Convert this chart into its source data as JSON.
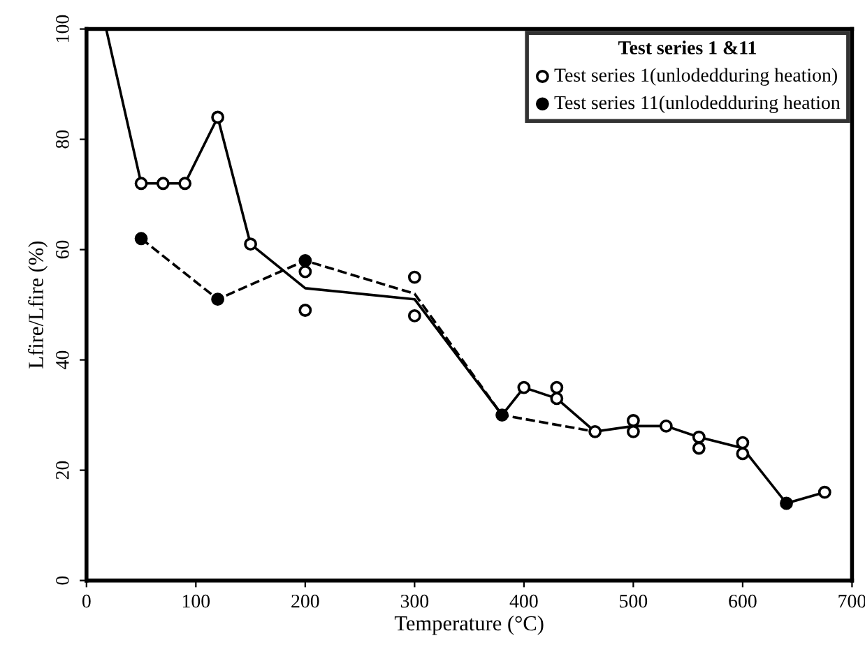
{
  "chart_data": {
    "type": "line",
    "xlabel": "Temperature (°C)",
    "ylabel": "Lfire/Lfire (%)",
    "legend_title": "Test series 1 &11",
    "xlim": [
      0,
      700
    ],
    "xticks": [
      0,
      100,
      200,
      300,
      400,
      500,
      600,
      700
    ],
    "ylim": [
      0,
      100
    ],
    "yticks": [
      0,
      20,
      40,
      60,
      80,
      100
    ],
    "grid": false,
    "legend": "top right",
    "series": [
      {
        "color": "#000000",
        "line_style": "solid",
        "marker": "none",
        "x": [
          18,
          50,
          70,
          90,
          120,
          150,
          200,
          300,
          380,
          400,
          430,
          465,
          500,
          530,
          560,
          600,
          640,
          675
        ],
        "values": [
          100,
          72,
          72,
          72,
          84,
          61,
          53,
          51,
          30,
          35,
          33,
          27,
          28,
          28,
          26,
          24,
          14,
          16
        ]
      },
      {
        "color": "#000000",
        "line_style": "dashed",
        "marker": "none",
        "x": [
          50,
          120,
          200,
          300,
          380,
          465
        ],
        "values": [
          62,
          51,
          58,
          52,
          30,
          27
        ]
      },
      {
        "type": "scatter",
        "name": "Test series 1(unlodedduring heation)",
        "color": "#ffffff",
        "marker": "circle",
        "x": [
          50,
          70,
          90,
          120,
          150,
          200,
          200,
          300,
          300,
          400,
          430,
          430,
          465,
          500,
          500,
          530,
          560,
          560,
          600,
          600,
          675
        ],
        "values": [
          72,
          72,
          72,
          84,
          61,
          56,
          49,
          55,
          48,
          35,
          35,
          33,
          27,
          29,
          27,
          28,
          26,
          24,
          25,
          23,
          16
        ]
      },
      {
        "type": "scatter",
        "name": "Test series 11(unlodedduring heation",
        "color": "#000000",
        "marker": "circle",
        "x": [
          50,
          120,
          200,
          380,
          640
        ],
        "values": [
          62,
          51,
          58,
          30,
          14
        ]
      }
    ]
  }
}
